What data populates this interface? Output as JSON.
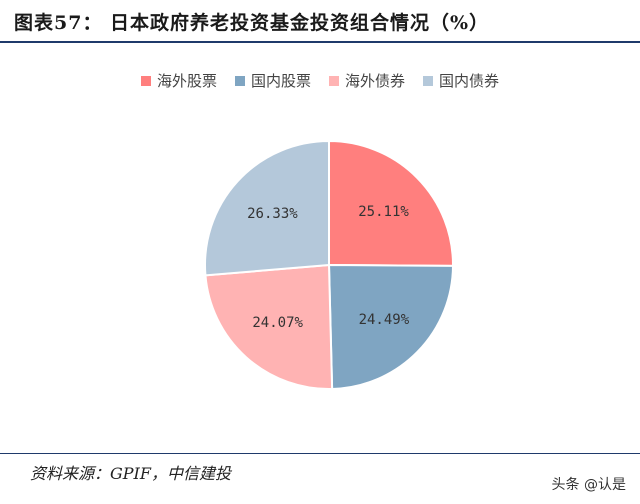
{
  "figure": {
    "title": "图表57：  日本政府养老投资基金投资组合情况（%）",
    "source": "资料来源：GPIF，中信建投",
    "watermark": "头条 @认是"
  },
  "chart_data": {
    "type": "pie",
    "title": "",
    "legend_position": "top",
    "categories": [
      "海外股票",
      "国内股票",
      "海外债券",
      "国内债券"
    ],
    "values": [
      25.11,
      24.49,
      24.07,
      26.33
    ],
    "labels": [
      "25.11%",
      "24.49%",
      "24.07%",
      "26.33%"
    ],
    "colors": [
      "#ff7f7e",
      "#7fa5c2",
      "#ffb3b3",
      "#b4c8da"
    ]
  }
}
